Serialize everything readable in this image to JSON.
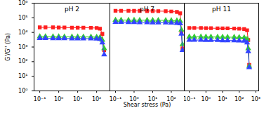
{
  "chart_data": [
    {
      "type": "line",
      "title": "pH 2",
      "log": true,
      "ylabel": "G'/G'' (Pa)",
      "x": [
        0.1,
        0.2,
        0.5,
        1,
        2,
        5,
        10,
        20,
        50,
        100,
        150,
        200,
        250
      ],
      "xlim": [
        0.05,
        500
      ],
      "xticks": [
        {
          "value": 0.1,
          "label": "10⁻¹"
        },
        {
          "value": 1,
          "label": "10⁰"
        },
        {
          "value": 10,
          "label": "10¹"
        },
        {
          "value": 100,
          "label": "10²"
        }
      ],
      "ylim": [
        1,
        1000000
      ],
      "yticks": [
        {
          "value": 1,
          "label": "10⁰"
        },
        {
          "value": 10,
          "label": "10¹"
        },
        {
          "value": 100,
          "label": "10²"
        },
        {
          "value": 1000,
          "label": "10³"
        },
        {
          "value": 10000,
          "label": "10⁴"
        },
        {
          "value": 100000,
          "label": "10⁵"
        },
        {
          "value": 1000000,
          "label": "10⁶"
        }
      ],
      "series": [
        {
          "color": "#ff2020",
          "marker": "square",
          "values": [
            22000,
            22000,
            22000,
            21500,
            21500,
            21000,
            21000,
            21000,
            20500,
            20000,
            18000,
            8000,
            600
          ]
        },
        {
          "color": "#33cc33",
          "marker": "triangle",
          "values": [
            5200,
            5200,
            5100,
            5100,
            5000,
            5000,
            5000,
            4900,
            4900,
            4800,
            4500,
            3000,
            800
          ]
        },
        {
          "color": "#3344ff",
          "marker": "triangle",
          "values": [
            4000,
            4000,
            3900,
            3900,
            3900,
            3800,
            3800,
            3800,
            3700,
            3600,
            3500,
            2000,
            300
          ]
        }
      ]
    },
    {
      "type": "line",
      "title": "pH 7",
      "log": true,
      "tick_labels": "x",
      "xlabel": "Shear stress (Pa)",
      "x": [
        0.1,
        0.2,
        0.5,
        1,
        2,
        5,
        10,
        20,
        50,
        100,
        200,
        300,
        350,
        400
      ],
      "xlim": [
        0.05,
        500
      ],
      "xticks": [
        {
          "value": 0.1,
          "label": "10⁻¹"
        },
        {
          "value": 1,
          "label": "10⁰"
        },
        {
          "value": 10,
          "label": "10¹"
        },
        {
          "value": 100,
          "label": "10²"
        }
      ],
      "ylim": [
        1,
        1000000
      ],
      "yticks": [
        1,
        10,
        100,
        1000,
        10000,
        100000,
        1000000
      ],
      "series": [
        {
          "color": "#ff2020",
          "marker": "square",
          "values": [
            300000,
            300000,
            300000,
            295000,
            295000,
            290000,
            290000,
            285000,
            280000,
            270000,
            250000,
            200000,
            10000,
            800
          ]
        },
        {
          "color": "#33cc33",
          "marker": "triangle",
          "values": [
            70000,
            70000,
            69000,
            69000,
            68000,
            68000,
            67000,
            67000,
            66000,
            65000,
            63000,
            60000,
            15000,
            1500
          ]
        },
        {
          "color": "#3344ff",
          "marker": "triangle",
          "values": [
            50000,
            50000,
            49000,
            49000,
            48000,
            48000,
            47000,
            47000,
            46000,
            45000,
            43000,
            40000,
            8000,
            600
          ]
        }
      ]
    },
    {
      "type": "line",
      "title": "pH 11",
      "log": true,
      "tick_labels": "x",
      "x": [
        0.1,
        0.2,
        0.5,
        1,
        2,
        5,
        10,
        20,
        50,
        100,
        200,
        300,
        350,
        400
      ],
      "xlim": [
        0.05,
        1500
      ],
      "xticks": [
        {
          "value": 0.1,
          "label": "10⁻¹"
        },
        {
          "value": 1,
          "label": "10⁰"
        },
        {
          "value": 10,
          "label": "10¹"
        },
        {
          "value": 100,
          "label": "10²"
        },
        {
          "value": 1000,
          "label": "10³"
        }
      ],
      "ylim": [
        1,
        1000000
      ],
      "yticks": [
        1,
        10,
        100,
        1000,
        10000,
        100000,
        1000000
      ],
      "series": [
        {
          "color": "#ff2020",
          "marker": "square",
          "values": [
            20000,
            20000,
            20000,
            19500,
            19500,
            19000,
            19000,
            19000,
            18500,
            18000,
            17000,
            14000,
            3000,
            60
          ]
        },
        {
          "color": "#33cc33",
          "marker": "triangle",
          "values": [
            5000,
            5000,
            5000,
            4900,
            4900,
            4800,
            4800,
            4700,
            4700,
            4600,
            4400,
            3500,
            800,
            50
          ]
        },
        {
          "color": "#3344ff",
          "marker": "triangle",
          "values": [
            3000,
            3000,
            3000,
            2900,
            2900,
            2900,
            2800,
            2800,
            2800,
            2700,
            2600,
            2000,
            500,
            40
          ]
        }
      ]
    }
  ]
}
